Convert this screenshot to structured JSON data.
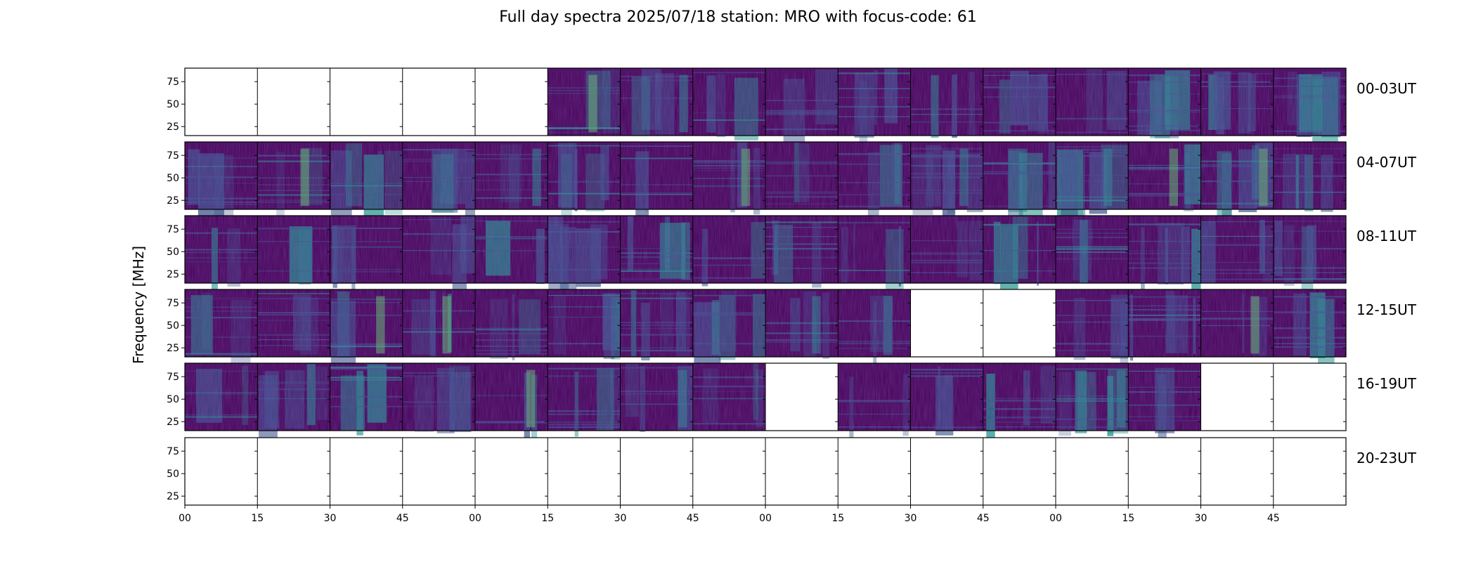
{
  "title": "Full day spectra 2025/07/18 station: MRO with focus-code: 61",
  "chart_data": {
    "type": "heatmap",
    "title": "Full day spectra 2025/07/18 station: MRO with focus-code: 61",
    "ylabel": "Frequency [MHz]",
    "xlabel": "",
    "y_ticks": [
      "25",
      "50",
      "75"
    ],
    "y_tick_values": [
      25,
      50,
      75
    ],
    "ylim": [
      15,
      90
    ],
    "x_ticks": [
      "00",
      "15",
      "30",
      "45",
      "00",
      "15",
      "30",
      "45",
      "00",
      "15",
      "30",
      "45",
      "00",
      "15",
      "30",
      "45"
    ],
    "rows": [
      {
        "label": "00-03UT",
        "has_data": [
          0,
          0,
          0,
          0,
          0,
          1,
          1,
          1,
          1,
          1,
          1,
          1,
          1,
          1,
          1,
          1
        ]
      },
      {
        "label": "04-07UT",
        "has_data": [
          1,
          1,
          1,
          1,
          1,
          1,
          1,
          1,
          1,
          1,
          1,
          1,
          1,
          1,
          1,
          1
        ]
      },
      {
        "label": "08-11UT",
        "has_data": [
          1,
          1,
          1,
          1,
          1,
          1,
          1,
          1,
          1,
          1,
          1,
          1,
          1,
          1,
          1,
          1
        ]
      },
      {
        "label": "12-15UT",
        "has_data": [
          1,
          1,
          1,
          1,
          1,
          1,
          1,
          1,
          1,
          1,
          0,
          0,
          1,
          1,
          1,
          1
        ]
      },
      {
        "label": "16-19UT",
        "has_data": [
          1,
          1,
          1,
          1,
          1,
          1,
          1,
          1,
          0,
          1,
          1,
          1,
          1,
          1,
          0,
          0
        ]
      },
      {
        "label": "20-23UT",
        "has_data": [
          0,
          0,
          0,
          0,
          0,
          0,
          0,
          0,
          0,
          0,
          0,
          0,
          0,
          0,
          0,
          0
        ]
      }
    ],
    "colormap": [
      "#440154",
      "#3b528b",
      "#21918c",
      "#5ec962",
      "#fde725"
    ],
    "grid": false
  }
}
